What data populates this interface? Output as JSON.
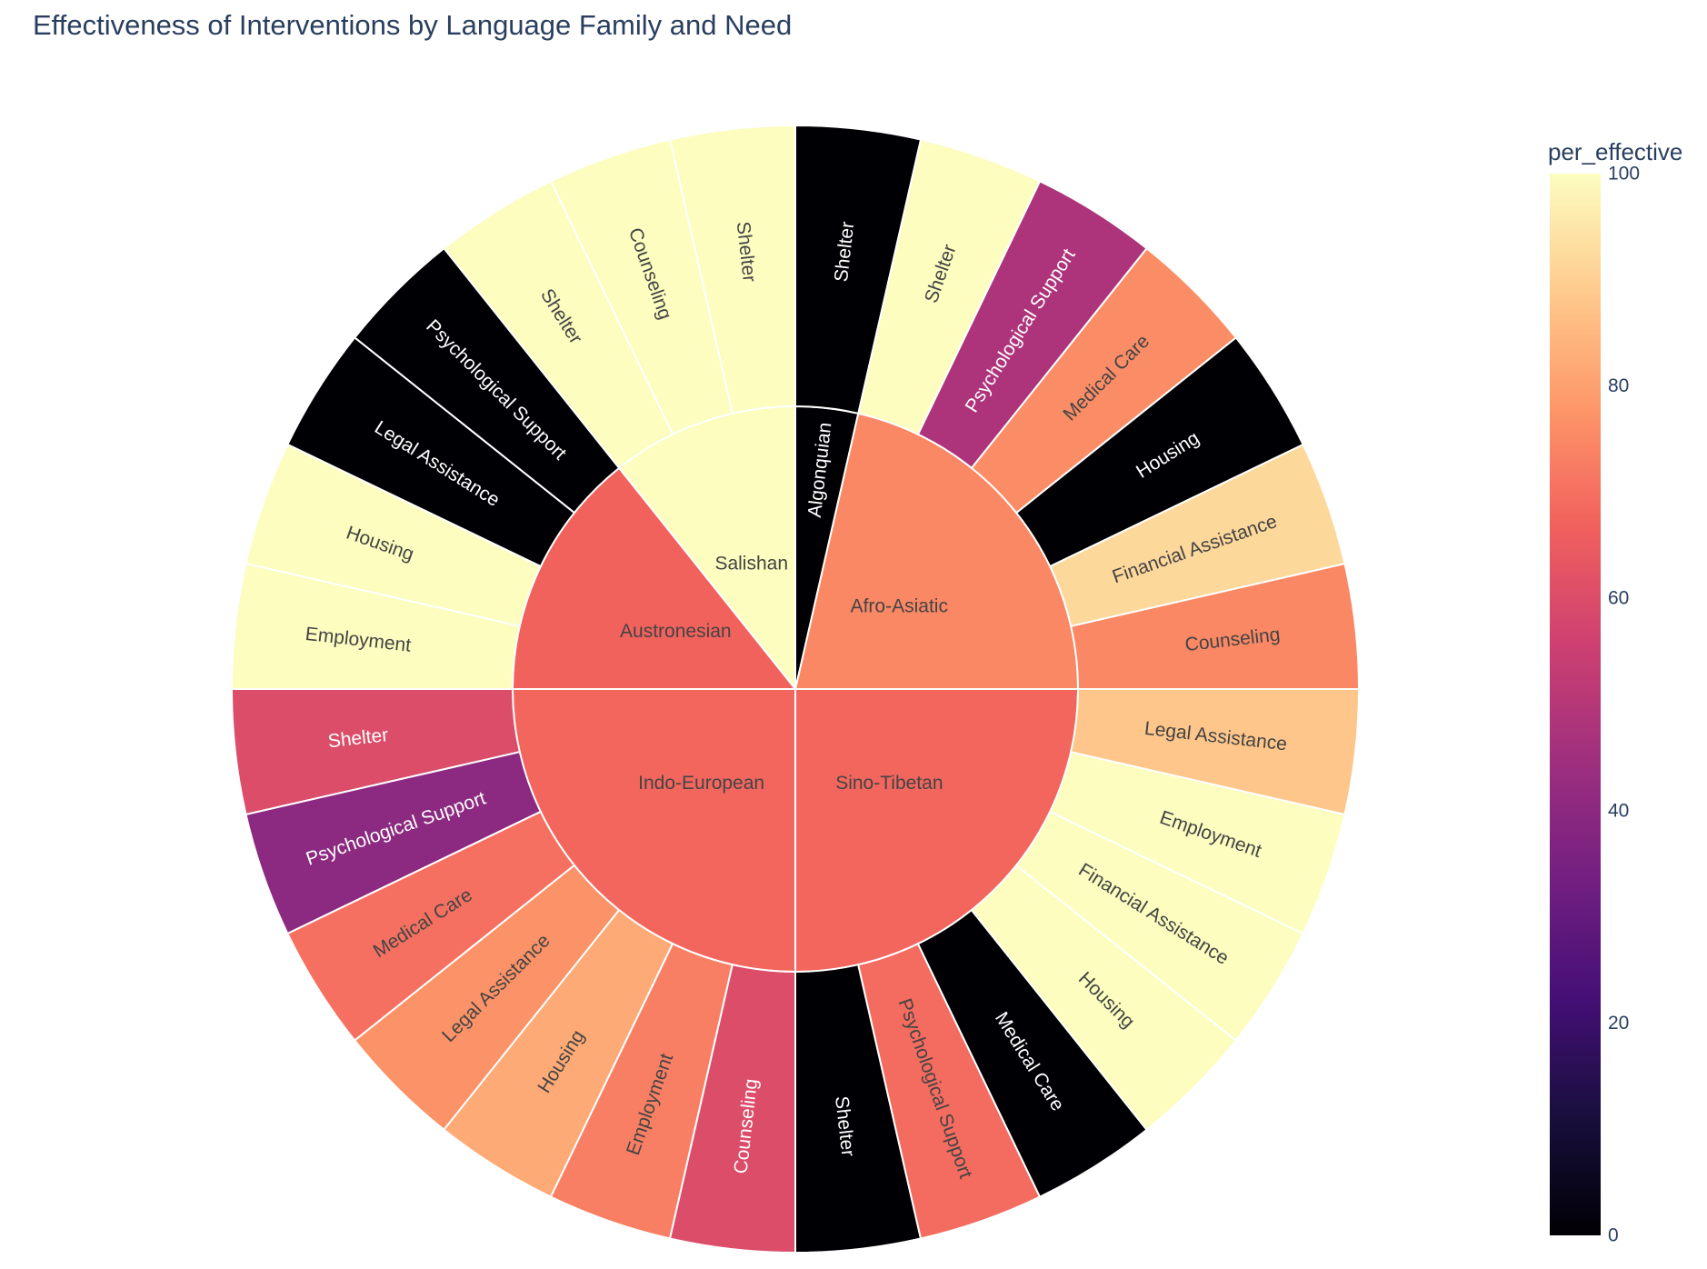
{
  "title": "Effectiveness of Interventions by Language Family and Need",
  "chart_data": {
    "type": "sunburst",
    "title": "Effectiveness of Interventions by Language Family and Need",
    "color_metric": "per_effective",
    "colorscale": "magma",
    "color_range": [
      0,
      100
    ],
    "colorbar": {
      "title": "per_effective",
      "ticks": [
        0,
        20,
        40,
        60,
        80,
        100
      ]
    },
    "parents": [
      {
        "name": "Afro-Asiatic",
        "value": 75,
        "children": [
          {
            "name": "Counseling",
            "value": 75
          },
          {
            "name": "Financial Assistance",
            "value": 92
          },
          {
            "name": "Housing",
            "value": 0
          },
          {
            "name": "Medical Care",
            "value": 76
          },
          {
            "name": "Psychological Support",
            "value": 48
          },
          {
            "name": "Shelter",
            "value": 100
          }
        ]
      },
      {
        "name": "Algonquian",
        "value": 0,
        "children": [
          {
            "name": "Shelter",
            "value": 0
          }
        ]
      },
      {
        "name": "Salishan",
        "value": 100,
        "children": [
          {
            "name": "Shelter",
            "value": 100
          },
          {
            "name": "Counseling",
            "value": 100
          },
          {
            "name": "Shelter",
            "value": 100
          }
        ]
      },
      {
        "name": "Austronesian",
        "value": 67,
        "children": [
          {
            "name": "Psychological Support",
            "value": 0
          },
          {
            "name": "Legal Assistance",
            "value": 0
          },
          {
            "name": "Housing",
            "value": 100
          },
          {
            "name": "Employment",
            "value": 100
          }
        ]
      },
      {
        "name": "Indo-European",
        "value": 68,
        "children": [
          {
            "name": "Shelter",
            "value": 60
          },
          {
            "name": "Psychological Support",
            "value": 40
          },
          {
            "name": "Medical Care",
            "value": 70
          },
          {
            "name": "Legal Assistance",
            "value": 77
          },
          {
            "name": "Housing",
            "value": 82
          },
          {
            "name": "Employment",
            "value": 73
          },
          {
            "name": "Counseling",
            "value": 60
          }
        ]
      },
      {
        "name": "Sino-Tibetan",
        "value": 68,
        "children": [
          {
            "name": "Shelter",
            "value": 0
          },
          {
            "name": "Psychological Support",
            "value": 69
          },
          {
            "name": "Medical Care",
            "value": 0
          },
          {
            "name": "Housing",
            "value": 100
          },
          {
            "name": "Financial Assistance",
            "value": 100
          },
          {
            "name": "Employment",
            "value": 100
          },
          {
            "name": "Legal Assistance",
            "value": 88
          }
        ]
      }
    ]
  }
}
